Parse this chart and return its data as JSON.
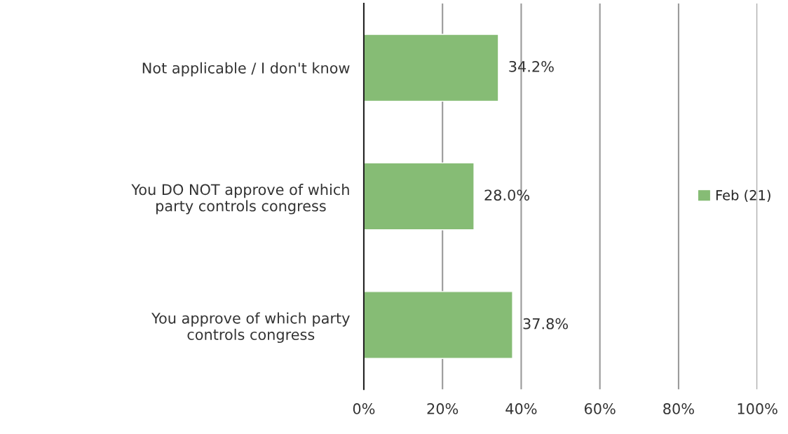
{
  "chart_data": {
    "type": "bar",
    "orientation": "horizontal",
    "categories": [
      "Not applicable / I don't know",
      "You DO NOT approve of which\nparty controls congress",
      "You approve of which party\ncontrols congress"
    ],
    "series": [
      {
        "name": "Feb (21)",
        "color": "#86bc75",
        "values": [
          34.2,
          28.0,
          37.8
        ],
        "value_labels": [
          "34.2%",
          "28.0%",
          "37.8%"
        ]
      }
    ],
    "xlim": [
      0,
      100
    ],
    "xticks": [
      {
        "value": 0,
        "label": "0%"
      },
      {
        "value": 20,
        "label": "20%"
      },
      {
        "value": 40,
        "label": "40%"
      },
      {
        "value": 60,
        "label": "60%"
      },
      {
        "value": 80,
        "label": "80%"
      },
      {
        "value": 100,
        "label": "100%"
      }
    ],
    "grid": "x",
    "legend": "right"
  }
}
